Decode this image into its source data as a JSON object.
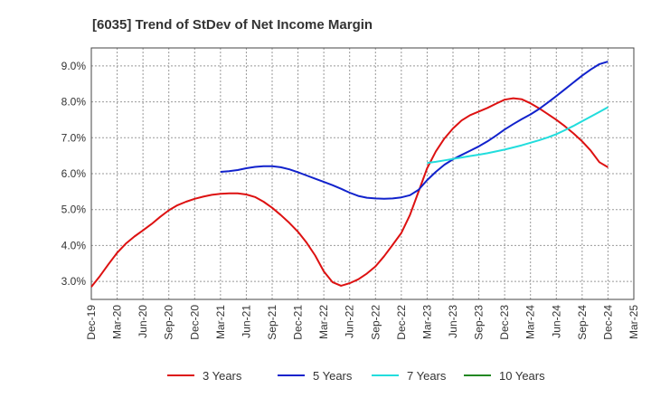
{
  "chart_data": {
    "type": "line",
    "title": "[6035]  Trend of StDev of Net Income Margin",
    "xlabel": "",
    "ylabel": "",
    "x_ticks": [
      "Dec-19",
      "Mar-20",
      "Jun-20",
      "Sep-20",
      "Dec-20",
      "Mar-21",
      "Jun-21",
      "Sep-21",
      "Dec-21",
      "Mar-22",
      "Jun-22",
      "Sep-22",
      "Dec-22",
      "Mar-23",
      "Jun-23",
      "Sep-23",
      "Dec-23",
      "Mar-24",
      "Jun-24",
      "Sep-24",
      "Dec-24",
      "Mar-25"
    ],
    "y_ticks": [
      "3.0%",
      "4.0%",
      "5.0%",
      "6.0%",
      "7.0%",
      "8.0%",
      "9.0%"
    ],
    "y_tick_values": [
      3.0,
      4.0,
      5.0,
      6.0,
      7.0,
      8.0,
      9.0
    ],
    "ylim": [
      2.5,
      9.5
    ],
    "grid": true,
    "legend_position": "bottom",
    "series": [
      {
        "name": "3 Years",
        "color": "#dd1111",
        "x": [
          "Dec-19",
          "Jan-20",
          "Feb-20",
          "Mar-20",
          "Apr-20",
          "May-20",
          "Jun-20",
          "Jul-20",
          "Aug-20",
          "Sep-20",
          "Oct-20",
          "Nov-20",
          "Dec-20",
          "Jan-21",
          "Feb-21",
          "Mar-21",
          "Apr-21",
          "May-21",
          "Jun-21",
          "Jul-21",
          "Aug-21",
          "Sep-21",
          "Oct-21",
          "Nov-21",
          "Dec-21",
          "Jan-22",
          "Feb-22",
          "Mar-22",
          "Apr-22",
          "May-22",
          "Jun-22",
          "Jul-22",
          "Aug-22",
          "Sep-22",
          "Oct-22",
          "Nov-22",
          "Dec-22",
          "Jan-23",
          "Feb-23",
          "Mar-23",
          "Apr-23",
          "May-23",
          "Jun-23",
          "Jul-23",
          "Aug-23",
          "Sep-23",
          "Oct-23",
          "Nov-23",
          "Dec-23",
          "Jan-24",
          "Feb-24",
          "Mar-24",
          "Apr-24",
          "May-24",
          "Jun-24",
          "Jul-24",
          "Aug-24",
          "Sep-24",
          "Oct-24",
          "Nov-24",
          "Dec-24"
        ],
        "values": [
          2.85,
          3.15,
          3.48,
          3.8,
          4.05,
          4.25,
          4.42,
          4.6,
          4.8,
          4.98,
          5.12,
          5.22,
          5.3,
          5.36,
          5.41,
          5.44,
          5.45,
          5.45,
          5.42,
          5.35,
          5.22,
          5.05,
          4.85,
          4.63,
          4.38,
          4.08,
          3.72,
          3.28,
          2.98,
          2.88,
          2.95,
          3.06,
          3.22,
          3.42,
          3.7,
          4.02,
          4.35,
          4.85,
          5.5,
          6.15,
          6.62,
          6.98,
          7.26,
          7.48,
          7.63,
          7.73,
          7.83,
          7.95,
          8.06,
          8.1,
          8.07,
          7.96,
          7.82,
          7.66,
          7.5,
          7.32,
          7.12,
          6.9,
          6.64,
          6.32,
          6.18
        ]
      },
      {
        "name": "5 Years",
        "color": "#1122cc",
        "x": [
          "Mar-21",
          "Apr-21",
          "May-21",
          "Jun-21",
          "Jul-21",
          "Aug-21",
          "Sep-21",
          "Oct-21",
          "Nov-21",
          "Dec-21",
          "Jan-22",
          "Feb-22",
          "Mar-22",
          "Apr-22",
          "May-22",
          "Jun-22",
          "Jul-22",
          "Aug-22",
          "Sep-22",
          "Oct-22",
          "Nov-22",
          "Dec-22",
          "Jan-23",
          "Feb-23",
          "Mar-23",
          "Apr-23",
          "May-23",
          "Jun-23",
          "Jul-23",
          "Aug-23",
          "Sep-23",
          "Oct-23",
          "Nov-23",
          "Dec-23",
          "Jan-24",
          "Feb-24",
          "Mar-24",
          "Apr-24",
          "May-24",
          "Jun-24",
          "Jul-24",
          "Aug-24",
          "Sep-24",
          "Oct-24",
          "Nov-24",
          "Dec-24"
        ],
        "values": [
          6.05,
          6.07,
          6.1,
          6.15,
          6.19,
          6.21,
          6.21,
          6.18,
          6.12,
          6.04,
          5.95,
          5.86,
          5.77,
          5.68,
          5.58,
          5.47,
          5.38,
          5.33,
          5.31,
          5.3,
          5.31,
          5.34,
          5.4,
          5.55,
          5.82,
          6.05,
          6.25,
          6.4,
          6.52,
          6.64,
          6.76,
          6.9,
          7.06,
          7.23,
          7.38,
          7.52,
          7.65,
          7.8,
          7.98,
          8.16,
          8.35,
          8.54,
          8.73,
          8.9,
          9.05,
          9.12
        ]
      },
      {
        "name": "7 Years",
        "color": "#22dddd",
        "x": [
          "Mar-23",
          "Apr-23",
          "May-23",
          "Jun-23",
          "Jul-23",
          "Aug-23",
          "Sep-23",
          "Oct-23",
          "Nov-23",
          "Dec-23",
          "Jan-24",
          "Feb-24",
          "Mar-24",
          "Apr-24",
          "May-24",
          "Jun-24",
          "Jul-24",
          "Aug-24",
          "Sep-24",
          "Oct-24",
          "Nov-24",
          "Dec-24"
        ],
        "values": [
          6.3,
          6.33,
          6.37,
          6.41,
          6.45,
          6.49,
          6.53,
          6.57,
          6.62,
          6.67,
          6.73,
          6.79,
          6.86,
          6.93,
          7.01,
          7.1,
          7.21,
          7.33,
          7.46,
          7.59,
          7.72,
          7.85
        ]
      },
      {
        "name": "10 Years",
        "color": "#228822",
        "x": [],
        "values": []
      }
    ]
  }
}
